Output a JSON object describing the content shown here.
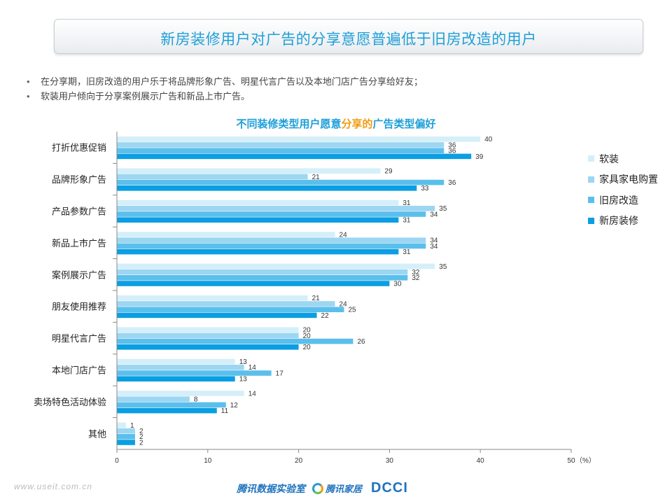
{
  "page": {
    "title": "新房装修用户对广告的分享意愿普遍低于旧房改造的用户",
    "bullets": [
      "在分享期，旧房改造的用户乐于将品牌形象广告、明星代言广告以及本地门店广告分享给好友；",
      "软装用户倾向于分享案例展示广告和新品上市广告。"
    ],
    "chart_title_pre": "不同装修类型用户愿意",
    "chart_title_hl": "分享的",
    "chart_title_post": "广告类型偏好",
    "footer": {
      "watermark": "www.useit.com.cn",
      "logo1": "腾讯数据实验室",
      "logo2": "腾讯家居",
      "logo3": "DCCI"
    }
  },
  "chart_data": {
    "type": "bar",
    "orientation": "horizontal",
    "categories": [
      "打折优惠促销",
      "品牌形象广告",
      "产品参数广告",
      "新品上市广告",
      "案例展示广告",
      "朋友使用推荐",
      "明星代言广告",
      "本地门店广告",
      "卖场特色活动体验",
      "其他"
    ],
    "series": [
      {
        "name": "软装",
        "color": "#d4effa",
        "values": [
          40,
          29,
          31,
          24,
          35,
          21,
          20,
          13,
          14,
          1
        ]
      },
      {
        "name": "家具家电购置",
        "color": "#9cd6f2",
        "values": [
          36,
          21,
          35,
          34,
          32,
          24,
          20,
          14,
          8,
          2
        ]
      },
      {
        "name": "旧房改造",
        "color": "#5bbfec",
        "values": [
          36,
          36,
          34,
          34,
          32,
          25,
          26,
          17,
          12,
          2
        ]
      },
      {
        "name": "新房装修",
        "color": "#0b9ee2",
        "values": [
          39,
          33,
          31,
          31,
          30,
          22,
          20,
          13,
          11,
          2
        ]
      }
    ],
    "x_ticks": [
      0,
      10,
      20,
      30,
      40,
      50
    ],
    "x_unit": "（%）",
    "xlim": [
      0,
      50
    ],
    "legend": "right"
  }
}
